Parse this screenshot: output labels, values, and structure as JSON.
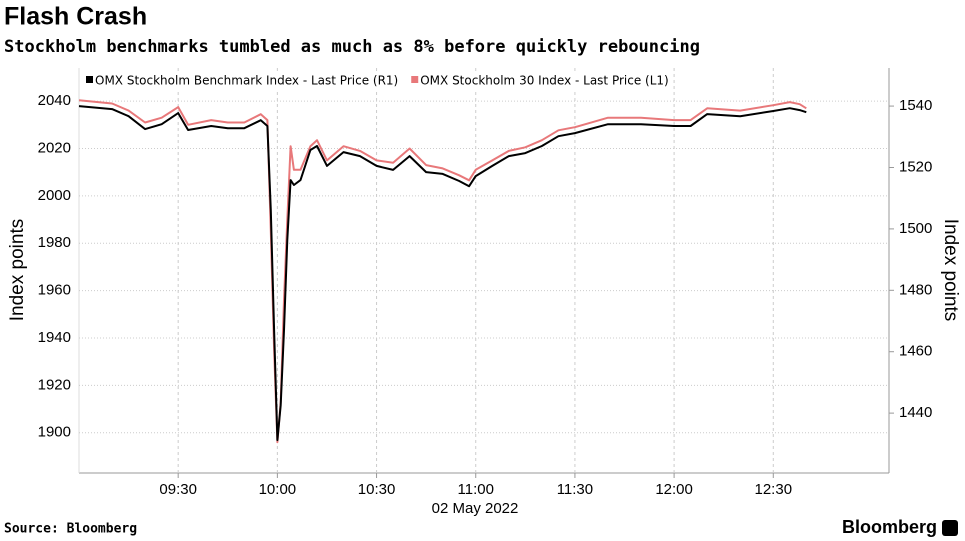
{
  "chart_data": {
    "type": "line",
    "title": "Flash Crash",
    "subtitle": "Stockholm benchmarks tumbled as much as 8% before quickly rebouncing",
    "x_label": "02 May 2022",
    "y_label": "Index points",
    "y2_label": "Index points",
    "source": "Source: Bloomberg",
    "brand": "Bloomberg",
    "x": [
      "09:00",
      "09:10",
      "09:15",
      "09:20",
      "09:25",
      "09:30",
      "09:33",
      "09:40",
      "09:45",
      "09:50",
      "09:55",
      "09:57",
      "09:58",
      "09:59",
      "10:00",
      "10:01",
      "10:02",
      "10:03",
      "10:04",
      "10:05",
      "10:07",
      "10:10",
      "10:12",
      "10:15",
      "10:20",
      "10:25",
      "10:30",
      "10:35",
      "10:40",
      "10:45",
      "10:50",
      "10:55",
      "10:58",
      "11:00",
      "11:05",
      "11:10",
      "11:15",
      "11:20",
      "11:25",
      "11:30",
      "11:40",
      "11:50",
      "12:00",
      "12:05",
      "12:10",
      "12:20",
      "12:30",
      "12:35",
      "12:38",
      "12:40"
    ],
    "xlim": [
      "09:00",
      "13:05"
    ],
    "xticks": [
      "09:30",
      "10:00",
      "10:30",
      "11:00",
      "11:30",
      "12:00",
      "12:30"
    ],
    "ylim": [
      1883,
      2054
    ],
    "yticks": [
      1900,
      1920,
      1940,
      1960,
      1980,
      2000,
      2020,
      2040
    ],
    "y2lim": [
      1420.5,
      1552.4
    ],
    "y2ticks": [
      1440,
      1460,
      1480,
      1500,
      1520,
      1540
    ],
    "grid": true,
    "legend": "upper left",
    "series": [
      {
        "name": "OMX Stockholm Benchmark Index - Last Price (R1)",
        "color": "#000000",
        "axis": "y2",
        "values": [
          1540.0,
          1539.0,
          1536.7,
          1532.5,
          1534.1,
          1537.7,
          1532.2,
          1533.5,
          1532.8,
          1532.8,
          1535.4,
          1533.5,
          1506.1,
          1467.0,
          1431.2,
          1442.6,
          1467.0,
          1496.4,
          1515.9,
          1514.3,
          1515.9,
          1525.7,
          1527.0,
          1520.5,
          1525.0,
          1523.7,
          1520.5,
          1519.2,
          1523.7,
          1518.5,
          1517.9,
          1515.6,
          1513.9,
          1517.2,
          1520.5,
          1523.7,
          1524.7,
          1527.0,
          1530.2,
          1531.2,
          1534.1,
          1534.1,
          1533.5,
          1533.5,
          1537.4,
          1536.7,
          1538.4,
          1539.3,
          1538.7,
          1538.0
        ]
      },
      {
        "name": "OMX Stockholm 30 Index - Last Price (L1)",
        "color": "#e8787a",
        "values": [
          2040.4,
          2039,
          2036,
          2031,
          2033,
          2037.5,
          2030,
          2032,
          2031,
          2031,
          2034.5,
          2032,
          1985,
          1935,
          1896,
          1913,
          1956,
          1990,
          2021,
          2011,
          2011,
          2021,
          2023.5,
          2015,
          2021,
          2019,
          2015,
          2014,
          2020,
          2013,
          2011.6,
          2008.7,
          2006.6,
          2011,
          2015,
          2019,
          2020.5,
          2023.5,
          2027.7,
          2029,
          2033,
          2033,
          2032,
          2032,
          2037,
          2036,
          2038.3,
          2039.6,
          2038.7,
          2037
        ]
      }
    ]
  }
}
